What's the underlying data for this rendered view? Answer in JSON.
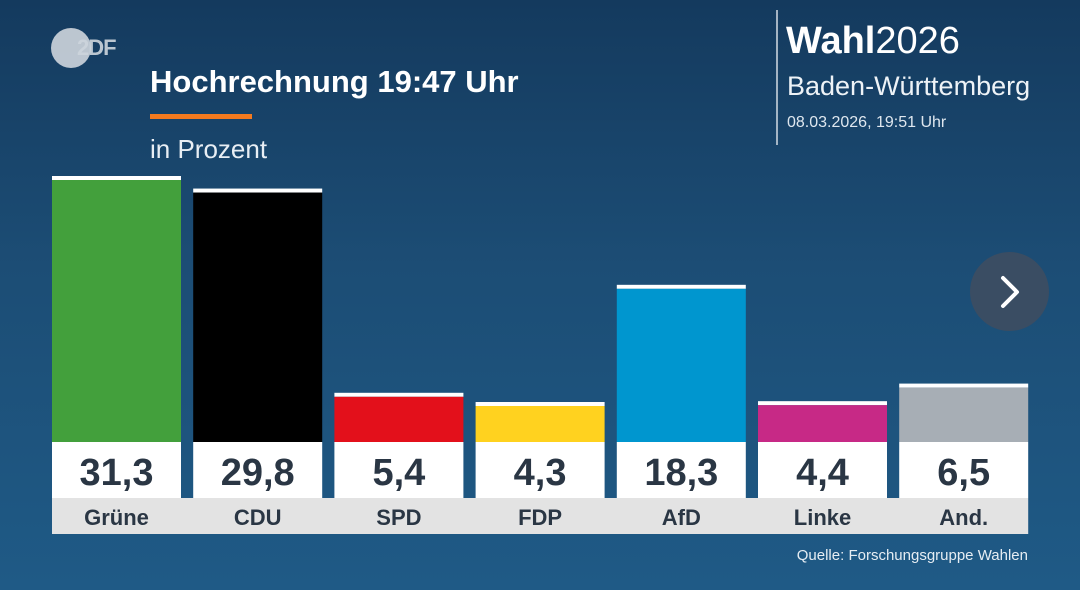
{
  "header": {
    "logo_text": "2DF",
    "title": "Hochrechnung 19:47 Uhr",
    "unit": "in Prozent"
  },
  "brand": {
    "name": "Wahl",
    "year": "2026",
    "region": "Baden-Württemberg",
    "timestamp": "08.03.2026, 19:51 Uhr"
  },
  "navigation": {
    "next_icon": "chevron-right-icon"
  },
  "source": "Quelle: Forschungsgruppe Wahlen",
  "colors": {
    "accent": "#f47a1f",
    "background_top": "#143a5e",
    "label_bg": "#e3e3e3"
  },
  "chart_data": {
    "type": "bar",
    "title": "Hochrechnung 19:47 Uhr",
    "ylabel": "in Prozent",
    "xlabel": "",
    "ylim": [
      0,
      31.3
    ],
    "categories": [
      "Grüne",
      "CDU",
      "SPD",
      "FDP",
      "AfD",
      "Linke",
      "And."
    ],
    "values": [
      31.3,
      29.8,
      5.4,
      4.3,
      18.3,
      4.4,
      6.5
    ],
    "value_labels": [
      "31,3",
      "29,8",
      "5,4",
      "4,3",
      "18,3",
      "4,4",
      "6,5"
    ],
    "colors": [
      "#43a03c",
      "#000000",
      "#e3101b",
      "#ffd21f",
      "#0096cf",
      "#c72986",
      "#a7aeb5"
    ],
    "grid": false,
    "legend": "none"
  }
}
